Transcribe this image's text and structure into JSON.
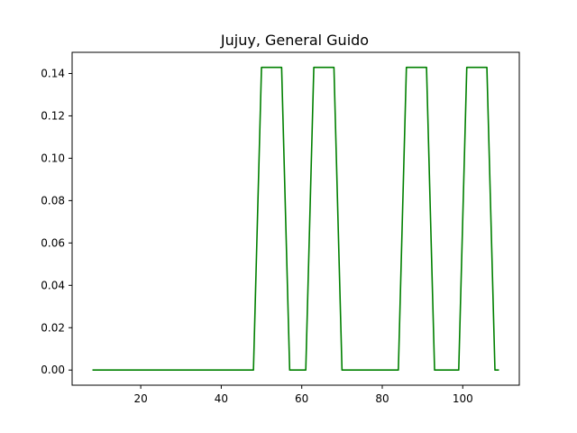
{
  "chart_data": {
    "type": "line",
    "title": "Jujuy, General Guido",
    "xlabel": "",
    "ylabel": "",
    "xlim": [
      2.95,
      114.05
    ],
    "ylim": [
      -0.00714,
      0.15
    ],
    "xticks": [
      20,
      40,
      60,
      80,
      100
    ],
    "xtick_labels": [
      "20",
      "40",
      "60",
      "80",
      "100"
    ],
    "yticks": [
      0.0,
      0.02,
      0.04,
      0.06,
      0.08,
      0.1,
      0.12,
      0.14
    ],
    "ytick_labels": [
      "0.00",
      "0.02",
      "0.04",
      "0.06",
      "0.08",
      "0.10",
      "0.12",
      "0.14"
    ],
    "grid": false,
    "series": [
      {
        "color": "#008000",
        "x": [
          8,
          48,
          50,
          55,
          57,
          61,
          63,
          68,
          70,
          84,
          86,
          91,
          93,
          99,
          101,
          106,
          108,
          109
        ],
        "y": [
          0,
          0,
          0.1429,
          0.1429,
          0,
          0,
          0.1429,
          0.1429,
          0,
          0,
          0.1429,
          0.1429,
          0,
          0,
          0.1429,
          0.1429,
          0,
          0
        ]
      }
    ]
  }
}
